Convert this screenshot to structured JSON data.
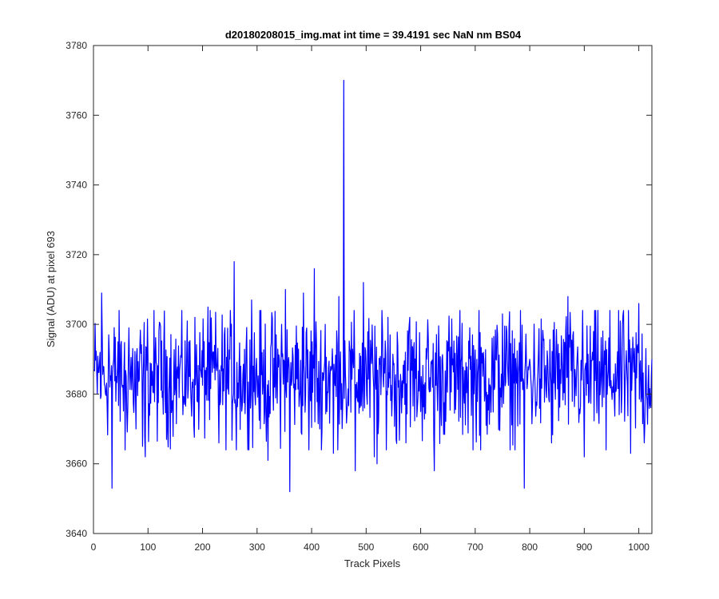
{
  "chart_data": {
    "type": "line",
    "title": "d20180208015_img.mat int time = 39.4191 sec  NaN nm BS04",
    "xlabel": "Track Pixels",
    "ylabel": "Signal (ADU) at pixel 693",
    "xlim": [
      0,
      1024
    ],
    "ylim": [
      3640,
      3780
    ],
    "xticks": [
      0,
      100,
      200,
      300,
      400,
      500,
      600,
      700,
      800,
      900,
      1000
    ],
    "yticks": [
      3640,
      3660,
      3680,
      3700,
      3720,
      3740,
      3760,
      3780
    ],
    "grid": false,
    "series": [
      {
        "name": "",
        "color": "#0000ff",
        "x": [
          1,
          12,
          15,
          22,
          28,
          34,
          45,
          58,
          65,
          78,
          90,
          95,
          100,
          120,
          150,
          175,
          190,
          210,
          230,
          250,
          258,
          262,
          270,
          290,
          310,
          320,
          345,
          352,
          360,
          370,
          385,
          395,
          405,
          415,
          425,
          440,
          450,
          455,
          459,
          462,
          470,
          480,
          495,
          500,
          515,
          520,
          540,
          555,
          580,
          600,
          625,
          650,
          690,
          710,
          750,
          790,
          800,
          840,
          870,
          900,
          915,
          940,
          970,
          985,
          1000,
          1010,
          1024
        ],
        "y": [
          3687,
          3692,
          3709,
          3680,
          3697,
          3653,
          3695,
          3664,
          3699,
          3670,
          3665,
          3662,
          3690,
          3698,
          3682,
          3695,
          3678,
          3705,
          3666,
          3690,
          3718,
          3664,
          3688,
          3707,
          3680,
          3661,
          3700,
          3710,
          3652,
          3694,
          3709,
          3664,
          3716,
          3670,
          3700,
          3663,
          3708,
          3683,
          3770,
          3686,
          3693,
          3658,
          3712,
          3688,
          3662,
          3660,
          3702,
          3667,
          3702,
          3675,
          3658,
          3695,
          3699,
          3664,
          3703,
          3653,
          3690,
          3666,
          3708,
          3662,
          3692,
          3664,
          3700,
          3663,
          3706,
          3666,
          3690
        ]
      }
    ]
  }
}
